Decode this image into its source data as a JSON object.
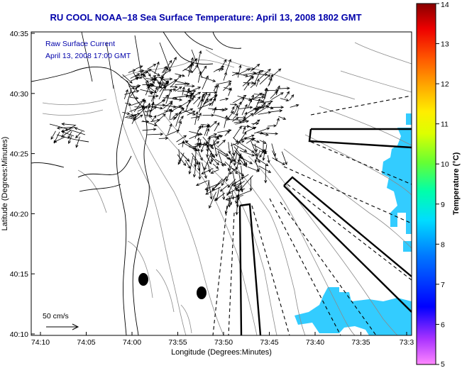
{
  "title": "RU COOL  NOAA–18  Sea Surface Temperature:  April 13, 2008 1802 GMT",
  "annotation": {
    "line1": "Raw Surface Current",
    "line2": "April 13, 2008 17:00 GMT"
  },
  "scale_label": "50 cm/s",
  "x_axis": {
    "label": "Longitude (Degrees:Minutes)",
    "ticks": [
      "74:10",
      "74:05",
      "74:00",
      "73:55",
      "73:50",
      "73:45",
      "73:40",
      "73:35",
      "73:3"
    ]
  },
  "y_axis": {
    "label": "Latitude (Degrees:Minutes)",
    "ticks": [
      "40:35",
      "40:30",
      "40:25",
      "40:20",
      "40:15",
      "40:10"
    ]
  },
  "colorbar": {
    "label": "Temperature (°C)",
    "ticks": [
      "14",
      "13",
      "12",
      "11",
      "10",
      "9",
      "8",
      "7",
      "6",
      "5"
    ],
    "min": 5,
    "max": 14,
    "colors": [
      "#ff66ff",
      "#9933ff",
      "#0000ff",
      "#0066ff",
      "#00ccff",
      "#00ffcc",
      "#66ff33",
      "#ccff00",
      "#ffff00",
      "#ffaa00",
      "#ff5500",
      "#ee0000",
      "#990000"
    ]
  },
  "colors": {
    "title": "#0000aa",
    "sst_patch": "#33ccff",
    "coast": "#000000",
    "bathymetry": "#888888"
  }
}
